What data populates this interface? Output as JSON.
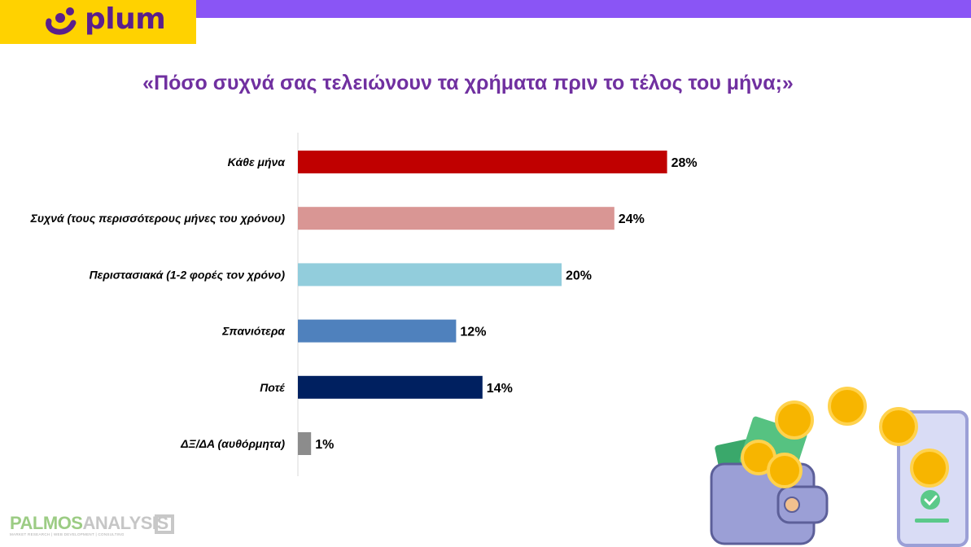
{
  "brand": {
    "name": "plum"
  },
  "chart_data": {
    "type": "bar",
    "orientation": "horizontal",
    "title": "«Πόσο συχνά σας τελειώνουν τα χρήματα πριν το τέλος του μήνα;»",
    "categories": [
      "Κάθε μήνα",
      "Συχνά (τους περισσότερους μήνες του χρόνου)",
      "Περιστασιακά (1-2 φορές τον χρόνο)",
      "Σπανιότερα",
      "Ποτέ",
      "ΔΞ/ΔΑ (αυθόρμητα)"
    ],
    "values": [
      28,
      24,
      20,
      12,
      14,
      1
    ],
    "value_labels": [
      "28%",
      "24%",
      "20%",
      "12%",
      "14%",
      "1%"
    ],
    "bar_colors": [
      "#c00000",
      "#d99694",
      "#92cddc",
      "#4f81bd",
      "#002060",
      "#8c8c8c"
    ],
    "xlim": [
      0,
      30
    ],
    "grid": false,
    "legend": "none"
  },
  "footer": {
    "name_main": "PALMOS",
    "name_accent": "ANALYSIS",
    "tagline": "MARKET RESEARCH | WEB DEVELOPMENT | CONSULTING"
  },
  "colors": {
    "accent": "#8a55f5",
    "brand_yellow": "#ffd200",
    "title": "#7030a0"
  }
}
